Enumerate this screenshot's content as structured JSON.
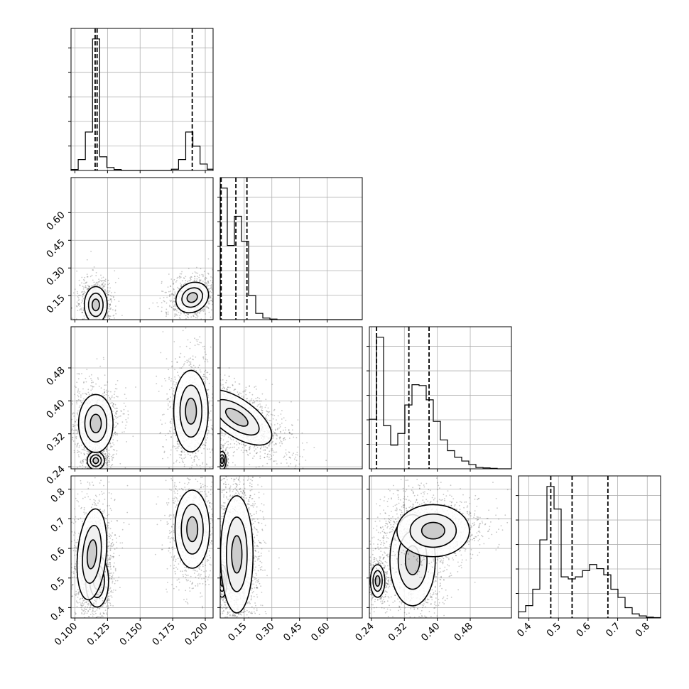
{
  "chart_data": {
    "type": "corner",
    "n_params": 4,
    "grid": true,
    "params": [
      {
        "range": [
          0.097,
          0.206
        ],
        "ticks": [
          0.1,
          0.125,
          0.15,
          0.175,
          0.2
        ],
        "tick_labels": [
          "0.100",
          "0.125",
          "0.150",
          "0.175",
          "0.200"
        ],
        "hist": {
          "edges": [
            0.097,
            0.1025,
            0.108,
            0.1135,
            0.119,
            0.1245,
            0.13,
            0.1355,
            0.141,
            0.1465,
            0.152,
            0.1575,
            0.163,
            0.1685,
            0.174,
            0.1795,
            0.185,
            0.1905,
            0.196,
            0.2015,
            0.206
          ],
          "counts": [
            0.04,
            0.44,
            1.55,
            5.3,
            0.55,
            0.12,
            0.04,
            0,
            0,
            0,
            0,
            0,
            0,
            0,
            0.05,
            0.44,
            1.55,
            0.98,
            0.26,
            0.05
          ]
        },
        "quantiles": [
          0.1155,
          0.117,
          0.19
        ]
      },
      {
        "range": [
          0.02,
          0.79
        ],
        "ticks": [
          0.15,
          0.3,
          0.45,
          0.6
        ],
        "tick_labels": [
          "0.15",
          "0.30",
          "0.45",
          "0.60"
        ],
        "hist": {
          "edges": [
            0.02,
            0.0585,
            0.097,
            0.1355,
            0.174,
            0.2125,
            0.251,
            0.2895,
            0.328,
            0.3665,
            0.405,
            0.4435,
            0.482,
            0.5205,
            0.559,
            0.5975,
            0.636,
            0.6745,
            0.713,
            0.7515,
            0.79
          ],
          "counts": [
            2.52,
            1.42,
            1.98,
            1.5,
            0.46,
            0.12,
            0.03,
            0.01,
            0,
            0,
            0,
            0,
            0,
            0,
            0,
            0,
            0,
            0,
            0,
            0
          ]
        },
        "quantiles": [
          0.025,
          0.105,
          0.165
        ]
      },
      {
        "range": [
          0.235,
          0.58
        ],
        "ticks": [
          0.24,
          0.32,
          0.4,
          0.48
        ],
        "tick_labels": [
          "0.24",
          "0.32",
          "0.40",
          "0.48"
        ],
        "hist": {
          "edges": [
            0.235,
            0.25225,
            0.2695,
            0.28675,
            0.304,
            0.32125,
            0.3385,
            0.35575,
            0.373,
            0.39025,
            0.4075,
            0.42475,
            0.442,
            0.45925,
            0.4765,
            0.49375,
            0.511,
            0.52825,
            0.5455,
            0.56275,
            0.58
          ],
          "counts": [
            1.15,
            3.05,
            1.0,
            0.55,
            0.82,
            1.48,
            1.95,
            1.93,
            1.6,
            1.1,
            0.67,
            0.42,
            0.27,
            0.18,
            0.1,
            0.03,
            0.02,
            0.01,
            0,
            0
          ]
        },
        "quantiles": [
          0.2525,
          0.331,
          0.38
        ]
      },
      {
        "range": [
          0.365,
          0.845
        ],
        "ticks": [
          0.4,
          0.5,
          0.6,
          0.7,
          0.8
        ],
        "tick_labels": [
          "0.4",
          "0.5",
          "0.6",
          "0.7",
          "0.8"
        ],
        "hist": {
          "edges": [
            0.365,
            0.389,
            0.413,
            0.437,
            0.461,
            0.485,
            0.509,
            0.533,
            0.557,
            0.581,
            0.605,
            0.629,
            0.653,
            0.677,
            0.701,
            0.725,
            0.749,
            0.773,
            0.797,
            0.821,
            0.845
          ],
          "counts": [
            0.15,
            0.3,
            0.7,
            1.9,
            3.2,
            2.65,
            1.0,
            0.95,
            1.0,
            1.15,
            1.3,
            1.2,
            1.05,
            0.7,
            0.5,
            0.25,
            0.1,
            0.05,
            0.02,
            0.01
          ]
        },
        "quantiles": [
          0.474,
          0.546,
          0.667
        ]
      }
    ],
    "contours_2d": [
      {
        "row": 1,
        "col": 0,
        "blobs": [
          {
            "cx": 0.116,
            "cy": 0.1,
            "sx": 0.004,
            "sy": 0.045,
            "rot": 0,
            "n": 900
          },
          {
            "cx": 0.19,
            "cy": 0.14,
            "sx": 0.006,
            "sy": 0.035,
            "rot": -35,
            "n": 900
          }
        ]
      },
      {
        "row": 2,
        "col": 0,
        "blobs": [
          {
            "cx": 0.116,
            "cy": 0.255,
            "sx": 0.003,
            "sy": 0.01,
            "rot": 0,
            "n": 400
          },
          {
            "cx": 0.116,
            "cy": 0.345,
            "sx": 0.006,
            "sy": 0.032,
            "rot": 0,
            "n": 900
          },
          {
            "cx": 0.189,
            "cy": 0.375,
            "sx": 0.006,
            "sy": 0.045,
            "rot": 0,
            "n": 900
          }
        ]
      },
      {
        "row": 2,
        "col": 1,
        "blobs": [
          {
            "cx": 0.03,
            "cy": 0.255,
            "sx": 0.01,
            "sy": 0.01,
            "rot": 0,
            "n": 300
          },
          {
            "cx": 0.11,
            "cy": 0.36,
            "sx": 0.045,
            "sy": 0.045,
            "rot": -55,
            "n": 1600
          }
        ]
      },
      {
        "row": 3,
        "col": 0,
        "blobs": [
          {
            "cx": 0.117,
            "cy": 0.49,
            "sx": 0.004,
            "sy": 0.04,
            "rot": 0,
            "n": 700
          },
          {
            "cx": 0.113,
            "cy": 0.58,
            "sx": 0.005,
            "sy": 0.07,
            "rot": 5,
            "n": 900
          },
          {
            "cx": 0.19,
            "cy": 0.665,
            "sx": 0.006,
            "sy": 0.06,
            "rot": 0,
            "n": 900
          }
        ]
      },
      {
        "row": 3,
        "col": 1,
        "blobs": [
          {
            "cx": 0.03,
            "cy": 0.49,
            "sx": 0.012,
            "sy": 0.025,
            "rot": 0,
            "n": 300
          },
          {
            "cx": 0.11,
            "cy": 0.58,
            "sx": 0.04,
            "sy": 0.09,
            "rot": 0,
            "n": 1800
          }
        ]
      },
      {
        "row": 3,
        "col": 2,
        "blobs": [
          {
            "cx": 0.255,
            "cy": 0.49,
            "sx": 0.008,
            "sy": 0.025,
            "rot": 0,
            "n": 400
          },
          {
            "cx": 0.34,
            "cy": 0.56,
            "sx": 0.025,
            "sy": 0.07,
            "rot": 0,
            "n": 1200
          },
          {
            "cx": 0.39,
            "cy": 0.66,
            "sx": 0.04,
            "sy": 0.04,
            "rot": 0,
            "n": 1000
          }
        ]
      }
    ]
  }
}
